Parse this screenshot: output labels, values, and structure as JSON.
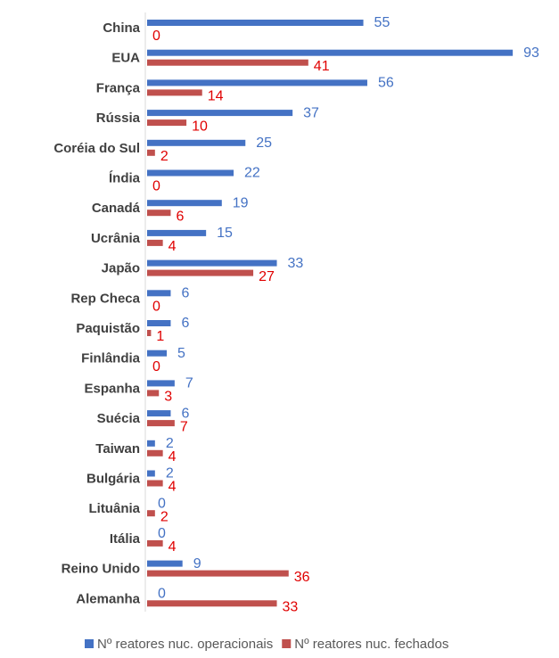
{
  "chart_data": {
    "type": "bar",
    "orientation": "horizontal",
    "categories": [
      "China",
      "EUA",
      "França",
      "Rússia",
      "Coréia do Sul",
      "Índia",
      "Canadá",
      "Ucrânia",
      "Japão",
      "Rep Checa",
      "Paquistão",
      "Finlândia",
      "Espanha",
      "Suécia",
      "Taiwan",
      "Bulgária",
      "Lituânia",
      "Itália",
      "Reino Unido",
      "Alemanha"
    ],
    "series": [
      {
        "name": "Nº reatores nuc. operacionais",
        "color": "#4472c4",
        "label_color": "#4472c4",
        "values": [
          55,
          93,
          56,
          37,
          25,
          22,
          19,
          15,
          33,
          6,
          6,
          5,
          7,
          6,
          2,
          2,
          0,
          0,
          9,
          0
        ]
      },
      {
        "name": "Nº reatores nuc. fechados",
        "color": "#c0504d",
        "label_color": "#e00000",
        "values": [
          0,
          41,
          14,
          10,
          2,
          0,
          6,
          4,
          27,
          0,
          1,
          0,
          3,
          7,
          4,
          4,
          2,
          4,
          36,
          33
        ]
      }
    ],
    "xlim": [
      0,
      100
    ],
    "legend": "bottom"
  }
}
